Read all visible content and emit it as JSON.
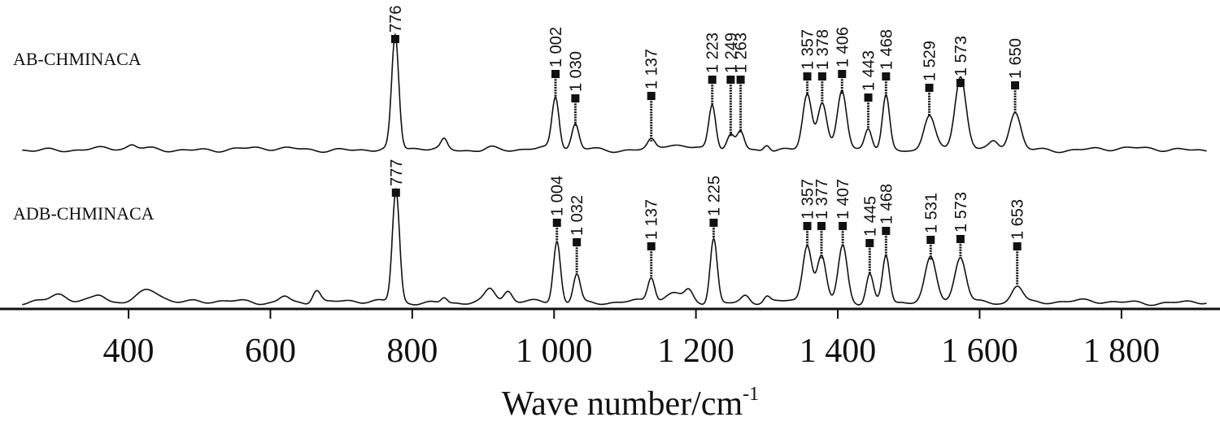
{
  "chart_data": {
    "type": "line",
    "xlabel_main": "Wave number/cm",
    "xlabel_sup": "-1",
    "xlim": [
      250,
      1920
    ],
    "x_ticks": [
      {
        "value": 400,
        "label": "400"
      },
      {
        "value": 600,
        "label": "600"
      },
      {
        "value": 800,
        "label": "800"
      },
      {
        "value": 1000,
        "label": "1 000"
      },
      {
        "value": 1200,
        "label": "1 200"
      },
      {
        "value": 1400,
        "label": "1 400"
      },
      {
        "value": 1600,
        "label": "1 600"
      },
      {
        "value": 1800,
        "label": "1 800"
      }
    ],
    "series": [
      {
        "name": "AB-CHMINACA",
        "peaks": [
          {
            "x": 776,
            "label": "776",
            "intensity": 1.0
          },
          {
            "x": 1002,
            "label": "1 002",
            "intensity": 0.46
          },
          {
            "x": 1030,
            "label": "1 030",
            "intensity": 0.22
          },
          {
            "x": 1137,
            "label": "1 137",
            "intensity": 0.08
          },
          {
            "x": 1223,
            "label": "1 223",
            "intensity": 0.4
          },
          {
            "x": 1249,
            "label": "1 249",
            "intensity": 0.12
          },
          {
            "x": 1263,
            "label": "1 263",
            "intensity": 0.16
          },
          {
            "x": 1357,
            "label": "1 357",
            "intensity": 0.49
          },
          {
            "x": 1378,
            "label": "1 378",
            "intensity": 0.42
          },
          {
            "x": 1406,
            "label": "1 406",
            "intensity": 0.5
          },
          {
            "x": 1443,
            "label": "1 443",
            "intensity": 0.19
          },
          {
            "x": 1468,
            "label": "1 468",
            "intensity": 0.47
          },
          {
            "x": 1529,
            "label": "1 529",
            "intensity": 0.31
          },
          {
            "x": 1573,
            "label": "1 573",
            "intensity": 0.65
          },
          {
            "x": 1650,
            "label": "1 650",
            "intensity": 0.33
          }
        ]
      },
      {
        "name": "ADB-CHMINACA",
        "peaks": [
          {
            "x": 777,
            "label": "777",
            "intensity": 1.0
          },
          {
            "x": 1004,
            "label": "1 004",
            "intensity": 0.55
          },
          {
            "x": 1032,
            "label": "1 032",
            "intensity": 0.26
          },
          {
            "x": 1137,
            "label": "1 137",
            "intensity": 0.22
          },
          {
            "x": 1225,
            "label": "1 225",
            "intensity": 0.58
          },
          {
            "x": 1357,
            "label": "1 357",
            "intensity": 0.51
          },
          {
            "x": 1377,
            "label": "1 377",
            "intensity": 0.4
          },
          {
            "x": 1407,
            "label": "1 407",
            "intensity": 0.51
          },
          {
            "x": 1445,
            "label": "1 445",
            "intensity": 0.26
          },
          {
            "x": 1468,
            "label": "1 468",
            "intensity": 0.42
          },
          {
            "x": 1531,
            "label": "1 531",
            "intensity": 0.38
          },
          {
            "x": 1573,
            "label": "1 573",
            "intensity": 0.4
          },
          {
            "x": 1653,
            "label": "1 653",
            "intensity": 0.16
          }
        ]
      }
    ]
  }
}
